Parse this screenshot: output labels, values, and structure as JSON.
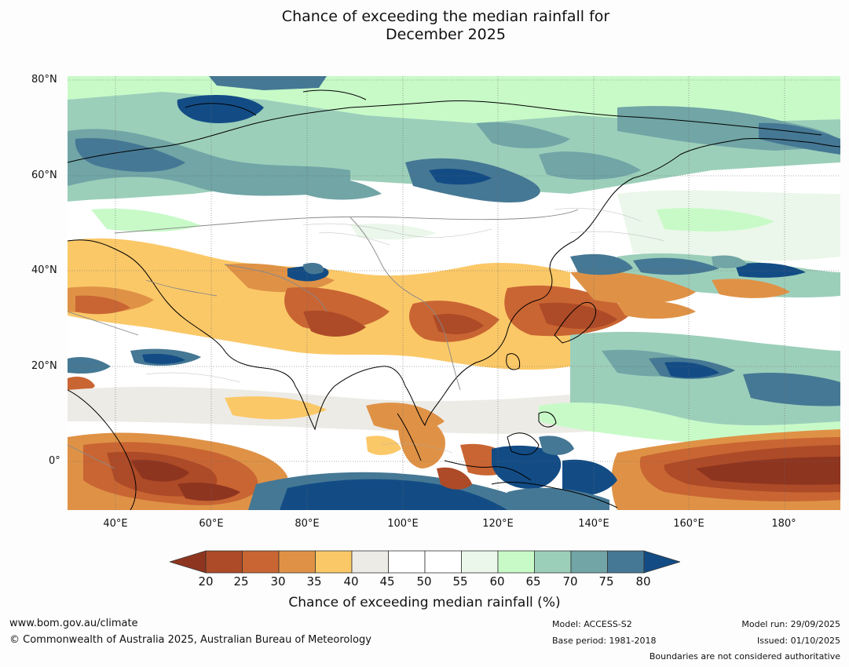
{
  "title_line1": "Chance of exceeding the median rainfall for",
  "title_line2": "December 2025",
  "lat_labels": [
    "80°N",
    "60°N",
    "40°N",
    "20°N",
    "0°"
  ],
  "lon_labels": [
    "40°E",
    "60°E",
    "80°E",
    "100°E",
    "120°E",
    "140°E",
    "160°E",
    "180°"
  ],
  "colorbar": {
    "ticks": [
      "20",
      "25",
      "30",
      "35",
      "40",
      "45",
      "50",
      "55",
      "60",
      "65",
      "70",
      "75",
      "80"
    ],
    "label": "Chance of exceeding median rainfall (%)",
    "colors": {
      "below20": "#8e3520",
      "c20_25": "#ad4a27",
      "c25_30": "#c96533",
      "c30_35": "#df9246",
      "c35_40": "#fbc868",
      "c40_45": "#edebe6",
      "c45_50": "#ffffff",
      "c50_55": "#ffffff",
      "c55_60": "#ebf7ea",
      "c60_65": "#c8fac8",
      "c65_70": "#9ccfba",
      "c70_75": "#71a5a6",
      "c75_80": "#457894",
      "above80": "#134c85"
    }
  },
  "footer": {
    "website": "www.bom.gov.au/climate",
    "copyright": "© Commonwealth of Australia 2025, Australian Bureau of Meteorology",
    "model": "Model: ACCESS-S2",
    "base_period": "Base period: 1981-2018",
    "model_run": "Model run: 29/09/2025",
    "issued": "Issued: 01/10/2025",
    "boundaries_note": "Boundaries are not considered authoritative"
  }
}
